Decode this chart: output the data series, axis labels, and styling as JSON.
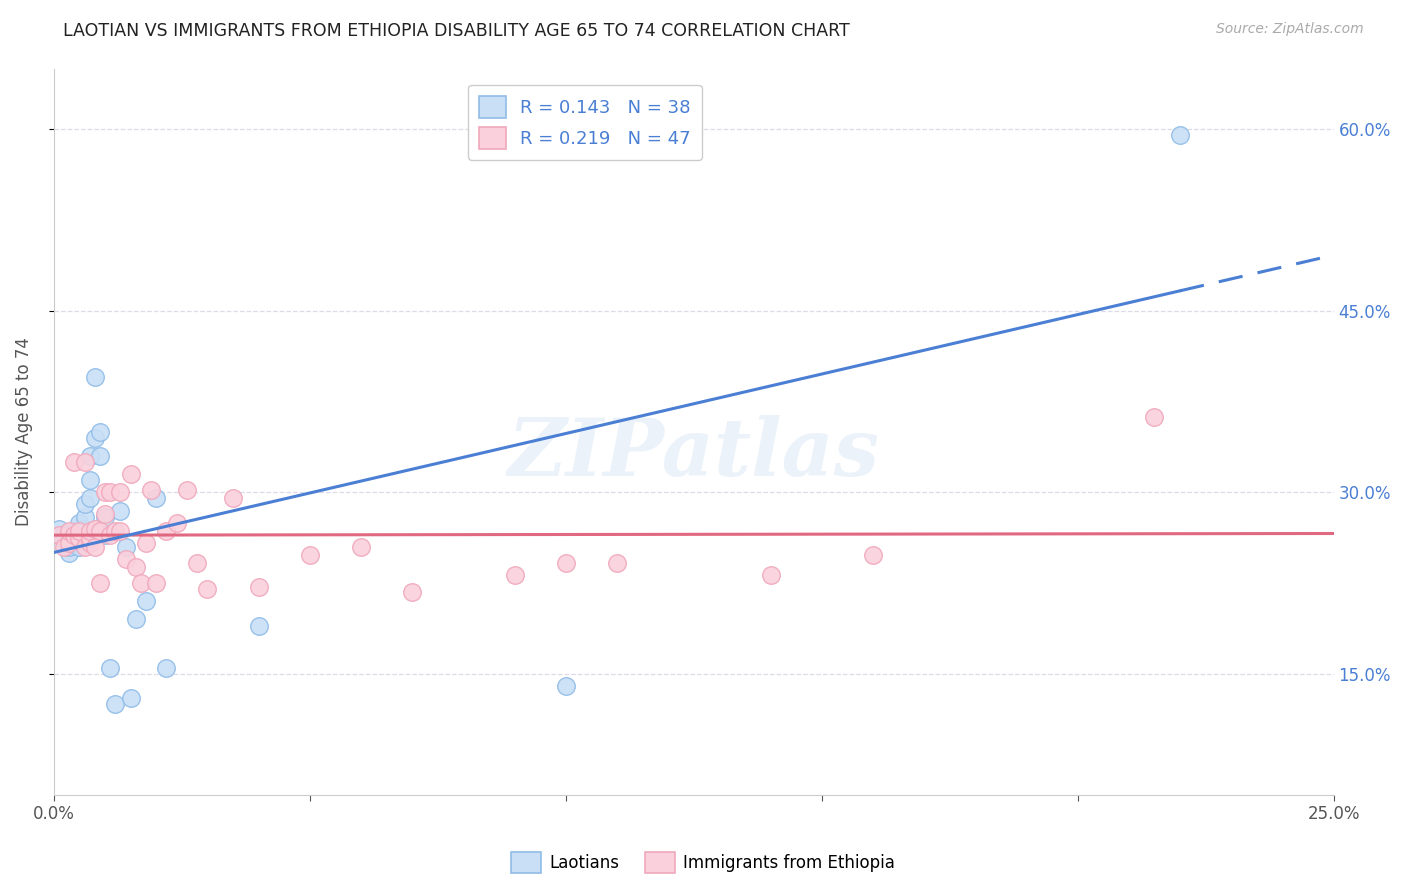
{
  "title": "LAOTIAN VS IMMIGRANTS FROM ETHIOPIA DISABILITY AGE 65 TO 74 CORRELATION CHART",
  "source": "Source: ZipAtlas.com",
  "ylabel": "Disability Age 65 to 74",
  "xlim": [
    0.0,
    0.25
  ],
  "ylim": [
    0.05,
    0.65
  ],
  "xticks": [
    0.0,
    0.05,
    0.1,
    0.15,
    0.2,
    0.25
  ],
  "yticks": [
    0.15,
    0.3,
    0.45,
    0.6
  ],
  "xtick_labels": [
    "0.0%",
    "",
    "",
    "",
    "",
    "25.0%"
  ],
  "ytick_labels_right": [
    "15.0%",
    "30.0%",
    "45.0%",
    "60.0%"
  ],
  "legend_labels": [
    "Laotians",
    "Immigrants from Ethiopia"
  ],
  "laotian_R": 0.143,
  "laotian_N": 38,
  "ethiopia_R": 0.219,
  "ethiopia_N": 47,
  "blue_edge_color": "#90bce8",
  "pink_edge_color": "#f0a8bc",
  "blue_fill_color": "#c8dff5",
  "pink_fill_color": "#fad0dc",
  "blue_line_color": "#4a7fd4",
  "pink_line_color": "#e06880",
  "watermark": "ZIPatlas",
  "background_color": "#ffffff",
  "grid_color": "#dcdce8",
  "laotian_x": [
    0.001,
    0.002,
    0.002,
    0.003,
    0.003,
    0.003,
    0.004,
    0.004,
    0.004,
    0.005,
    0.005,
    0.005,
    0.005,
    0.006,
    0.006,
    0.006,
    0.006,
    0.007,
    0.007,
    0.007,
    0.008,
    0.008,
    0.009,
    0.009,
    0.01,
    0.01,
    0.011,
    0.012,
    0.013,
    0.014,
    0.015,
    0.016,
    0.018,
    0.02,
    0.022,
    0.04,
    0.1,
    0.22
  ],
  "laotian_y": [
    0.27,
    0.265,
    0.26,
    0.25,
    0.255,
    0.265,
    0.258,
    0.262,
    0.268,
    0.255,
    0.26,
    0.27,
    0.275,
    0.265,
    0.27,
    0.28,
    0.29,
    0.295,
    0.31,
    0.33,
    0.345,
    0.395,
    0.35,
    0.33,
    0.265,
    0.28,
    0.155,
    0.125,
    0.285,
    0.255,
    0.13,
    0.195,
    0.21,
    0.295,
    0.155,
    0.19,
    0.14,
    0.595
  ],
  "ethiopia_x": [
    0.001,
    0.002,
    0.003,
    0.003,
    0.004,
    0.004,
    0.005,
    0.005,
    0.006,
    0.006,
    0.007,
    0.007,
    0.007,
    0.008,
    0.008,
    0.009,
    0.009,
    0.01,
    0.01,
    0.011,
    0.011,
    0.012,
    0.013,
    0.013,
    0.014,
    0.015,
    0.016,
    0.017,
    0.018,
    0.019,
    0.02,
    0.022,
    0.024,
    0.026,
    0.028,
    0.03,
    0.035,
    0.04,
    0.05,
    0.06,
    0.07,
    0.09,
    0.1,
    0.11,
    0.14,
    0.16,
    0.215
  ],
  "ethiopia_y": [
    0.265,
    0.255,
    0.258,
    0.268,
    0.265,
    0.325,
    0.262,
    0.268,
    0.255,
    0.325,
    0.258,
    0.262,
    0.268,
    0.255,
    0.27,
    0.268,
    0.225,
    0.3,
    0.282,
    0.265,
    0.3,
    0.268,
    0.3,
    0.268,
    0.245,
    0.315,
    0.238,
    0.225,
    0.258,
    0.302,
    0.225,
    0.268,
    0.275,
    0.302,
    0.242,
    0.22,
    0.295,
    0.222,
    0.248,
    0.255,
    0.218,
    0.232,
    0.242,
    0.242,
    0.232,
    0.248,
    0.362
  ]
}
